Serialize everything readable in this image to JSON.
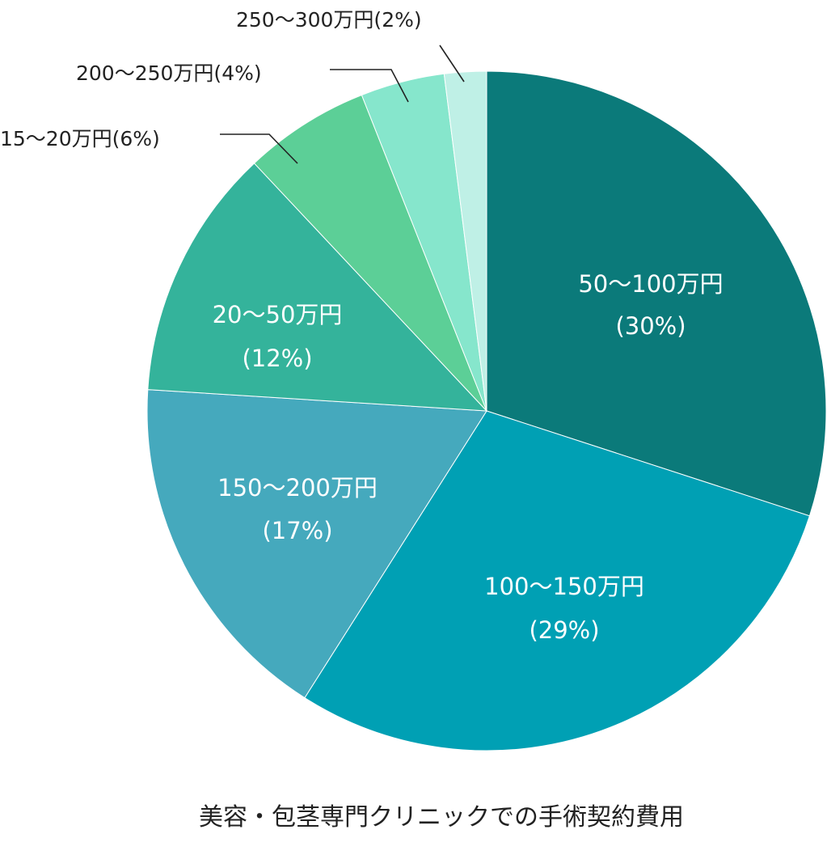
{
  "chart_data": {
    "type": "pie",
    "title": "美容・包茎専門クリニックでの手術契約費用",
    "slices": [
      {
        "label": "50〜100万円",
        "pct_label": "(30%)",
        "value": 30,
        "color": "#0b7a7a"
      },
      {
        "label": "100〜150万円",
        "pct_label": "(29%)",
        "value": 29,
        "color": "#00a0b4"
      },
      {
        "label": "150〜200万円",
        "pct_label": "(17%)",
        "value": 17,
        "color": "#45a9bd"
      },
      {
        "label": "20〜50万円",
        "pct_label": "(12%)",
        "value": 12,
        "color": "#34b39b"
      },
      {
        "label": "15〜20万円(6%)",
        "value": 6,
        "color": "#5ccf97"
      },
      {
        "label": "200〜250万円(4%)",
        "value": 4,
        "color": "#86e6cc"
      },
      {
        "label": "250〜300万円(2%)",
        "value": 2,
        "color": "#bff0e6"
      }
    ]
  }
}
